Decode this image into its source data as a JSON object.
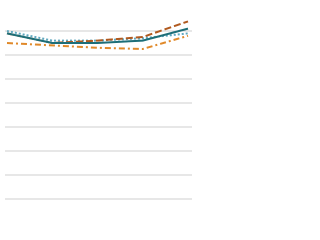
{
  "chart_data": {
    "type": "line",
    "categories": [
      null,
      null,
      null,
      null,
      null
    ],
    "series": [
      {
        "color": "#e0892a",
        "dash": "6,3,2,3",
        "values": [
          6.5,
          6.4,
          6.3,
          6.25,
          6.8
        ]
      },
      {
        "color": "#5fa8bf",
        "dash": "2,2",
        "values": [
          7.0,
          6.6,
          6.6,
          6.7,
          6.9
        ]
      },
      {
        "color": "#b0591e",
        "dash": "7,3",
        "values": [
          6.9,
          6.5,
          6.6,
          6.75,
          7.4
        ]
      },
      {
        "color": "#1d6e78",
        "dash": "",
        "values": [
          6.9,
          6.5,
          6.5,
          6.6,
          7.1
        ]
      }
    ],
    "ylim": [
      0,
      8
    ],
    "yticks": [
      0,
      1,
      2,
      3,
      4,
      5,
      6,
      7
    ],
    "grid": true
  }
}
